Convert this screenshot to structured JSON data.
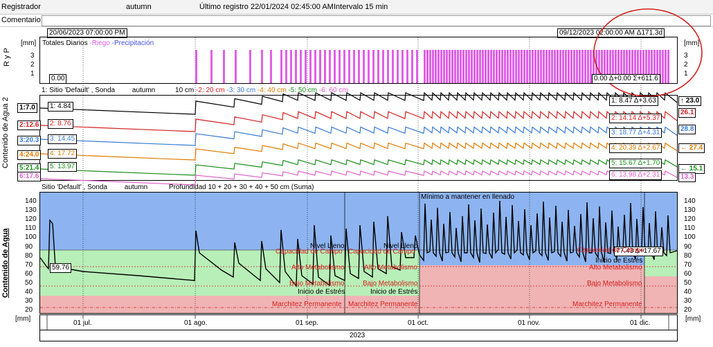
{
  "header": {
    "registrador_label": "Registrador",
    "registrador_value": "autumn",
    "ultimo_registro": "Último registro 22/01/2024 02:45:00 AM",
    "intervalo": "Intervalo 15 min"
  },
  "comentario": {
    "label": "Comentario:",
    "value": ""
  },
  "range": {
    "start": "20/06/2023 07:00:00 PM",
    "end": "09/12/2023 02:00:00 AM",
    "delta": "Δ171.3d"
  },
  "rain_panel": {
    "ylabel": "R y P",
    "unit": "[mm]",
    "title": "Totales Diarios",
    "legend_riego": "-Riego",
    "legend_precip": "-Precipitación",
    "left_val": "0.00",
    "right_summary": "0.00  Δ+0.00 Σ+611.6",
    "ticks": [
      "3",
      "2",
      "1"
    ]
  },
  "water2_panel": {
    "ylabel": "Contenido de Agua 2",
    "legend_prefix": "1: Sitio  'Default' , Sonda",
    "legend_sonda": "autumn",
    "legend_depths": [
      "10 cm",
      "-2: 20 cm",
      "-3: 30 cm",
      "-4: 40 cm",
      "-5: 50 cm",
      "-6: 60 cm"
    ],
    "series": [
      {
        "left": "1:7.0",
        "start": "1: 4.84",
        "end": "1: 8.47  Δ+3.63",
        "right": "23.0",
        "color": "#000000",
        "arrow": "↑"
      },
      {
        "left": "2:12.6",
        "start": "2: 8.76",
        "end": "2: 14.14  Δ+5.37",
        "right": "26.1",
        "color": "#d42020",
        "arrow": ""
      },
      {
        "left": "3:20.3",
        "start": "3: 14.45",
        "end": "3: 18.77  Δ+4.31",
        "right": "28.8",
        "color": "#3a7bd5",
        "arrow": ""
      },
      {
        "left": "4:24.0",
        "start": "4: 17.72",
        "end": "4: 20.39  Δ+2.67",
        "right": "27.4",
        "color": "#e07b00",
        "arrow": "←"
      },
      {
        "left": "5:21.4",
        "start": "5: 13.97",
        "end": "5: 15.67  Δ+1.70",
        "right": "15.1",
        "color": "#1a8f1a",
        "arrow": "←"
      },
      {
        "left": "6:17.6",
        "start": "",
        "end": "6: 13.98  Δ+2.31",
        "right": "13.3",
        "color": "#e060c8",
        "arrow": ""
      }
    ]
  },
  "water_panel": {
    "ylabel": "Contenido de Agua",
    "unit": "[mm]",
    "legend": "Sitio  'Default' , Sonda",
    "legend_sonda": "autumn",
    "legend_depth": "Profundidad 10 + 20 + 30 + 40 + 50 cm (Suma)",
    "start_val": "59.76",
    "end_val": "77.43  Δ+17.67",
    "ticks": [
      "140",
      "130",
      "120",
      "110",
      "100",
      "90",
      "80",
      "70",
      "60",
      "50",
      "40",
      "30",
      "20"
    ],
    "labels": {
      "minimo": "Mínimo a mantener en llenado",
      "nivel_lleno": "Nivel Lleno",
      "capacidad": "Capacidad de Campo",
      "alto": "Alto Metabolismo",
      "bajo": "Bajo Metabolismo",
      "estres": "Inicio de Estrés",
      "marchitez": "Marchitez Permanente"
    }
  },
  "xaxis": {
    "ticks": [
      "01 jul.",
      "01 ago.",
      "01 sep.",
      "01 oct.",
      "01 nov.",
      "01 dic."
    ],
    "year": "2023"
  },
  "colors": {
    "blue_zone": "#8db4f0",
    "green_zone": "#b8efb8",
    "red_zone": "#f0b4b4",
    "riego": "#e060e8",
    "annotation_circle": "#d42020"
  }
}
